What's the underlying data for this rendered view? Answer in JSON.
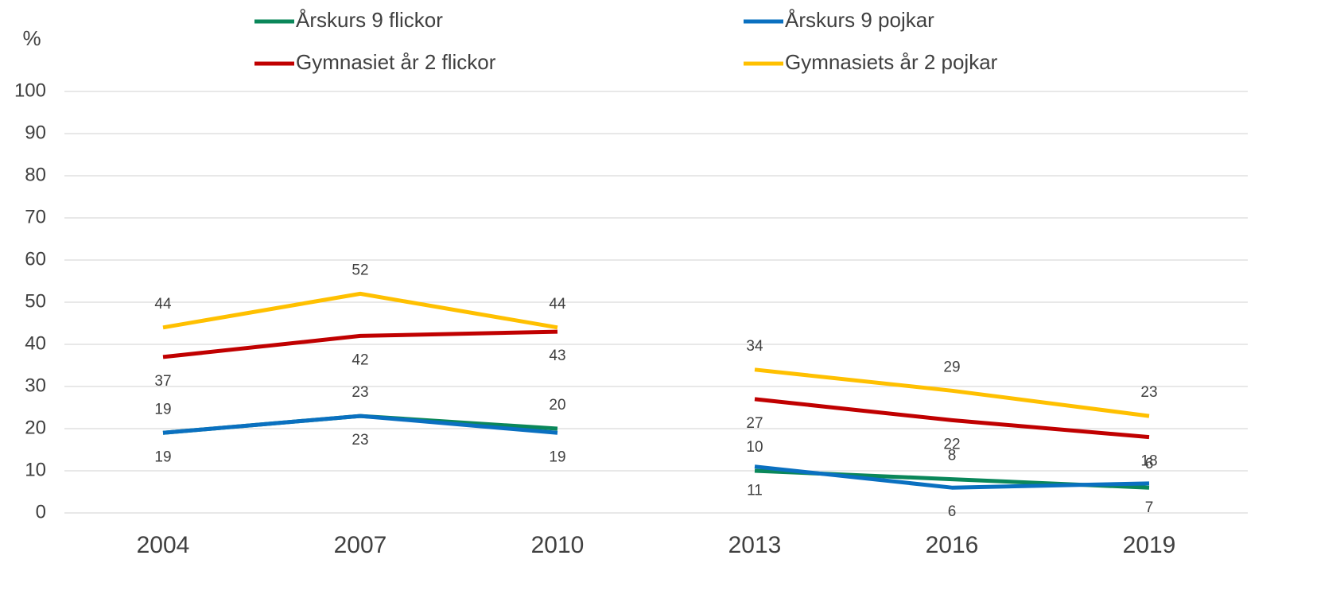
{
  "chart_data": {
    "type": "line",
    "y_label": "%",
    "categories": [
      "2004",
      "2007",
      "2010",
      "2013",
      "2016",
      "2019"
    ],
    "line_breaks_before": [
      3
    ],
    "series": [
      {
        "name": "Årskurs 9 flickor",
        "color": "#0a875a",
        "values": [
          19,
          23,
          20,
          10,
          8,
          6
        ],
        "label_side": "above"
      },
      {
        "name": "Årskurs 9 pojkar",
        "color": "#0a70c0",
        "values": [
          19,
          23,
          19,
          11,
          6,
          7
        ],
        "label_side": "below"
      },
      {
        "name": "Gymnasiet år 2 flickor",
        "color": "#c00000",
        "values": [
          37,
          42,
          43,
          27,
          22,
          18
        ],
        "label_side": "below"
      },
      {
        "name": "Gymnasiets år 2 pojkar",
        "color": "#ffc000",
        "values": [
          44,
          52,
          44,
          34,
          29,
          23
        ],
        "label_side": "above"
      }
    ],
    "ylim": [
      0,
      100
    ],
    "yticks": [
      0,
      10,
      20,
      30,
      40,
      50,
      60,
      70,
      80,
      90,
      100
    ],
    "grid": true,
    "legend": "top"
  }
}
